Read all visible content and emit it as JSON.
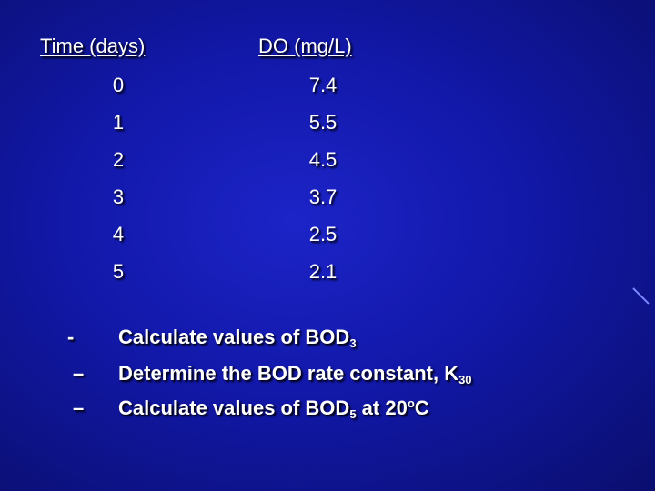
{
  "table": {
    "headers": [
      "Time (days)",
      "DO (mg/L)"
    ],
    "time_days": [
      "0",
      "1",
      "2",
      "3",
      "4",
      "5"
    ],
    "do_mgl": [
      "7.4",
      "5.5",
      "4.5",
      "3.7",
      "2.5",
      "2.1"
    ]
  },
  "tasks": [
    {
      "bullet": "-",
      "text": "Calculate values of BOD",
      "sub": "3",
      "sup": "",
      "tail": ""
    },
    {
      "bullet": "–",
      "text": "Determine the BOD rate constant, K",
      "sub": "30",
      "sup": "",
      "tail": ""
    },
    {
      "bullet": "–",
      "text": "Calculate values of BOD",
      "sub": "5",
      "mid": " at 20",
      "sup": "o",
      "tail": "C"
    }
  ],
  "colors": {
    "background": "#1218a8",
    "text": "#ffffff"
  }
}
